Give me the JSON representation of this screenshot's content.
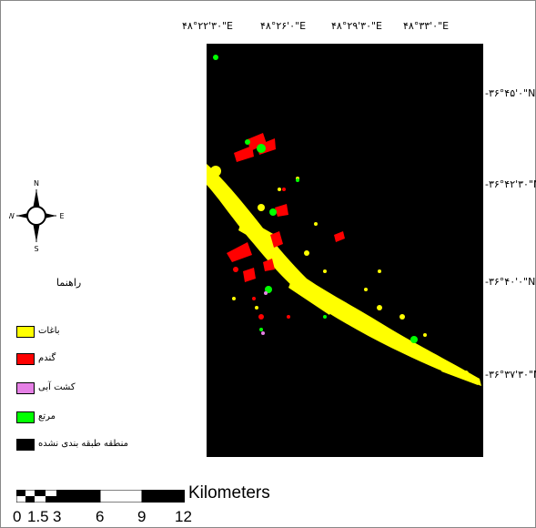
{
  "longitude_labels": [
    "۴۸°۲۲'۳۰\"E",
    "۴۸°۲۶'۰\"E",
    "۴۸°۲۹'۳۰\"E",
    "۴۸°۳۳'۰\"E"
  ],
  "latitude_labels": [
    "-۳۶°۴۵'۰\"N",
    "-۳۶°۴۲'۳۰\"N",
    "-۳۶°۴۰'۰\"N",
    "-۳۶°۳۷'۳۰\"N"
  ],
  "compass": {
    "n": "N",
    "s": "S",
    "e": "E",
    "w": "W"
  },
  "legend": {
    "title": "راهنما",
    "items": [
      {
        "label": "باغات",
        "color": "#ffff00"
      },
      {
        "label": "گندم",
        "color": "#ff0000"
      },
      {
        "label": "کشت آبی",
        "color": "#e580e5"
      },
      {
        "label": "مرتع",
        "color": "#00ff00"
      },
      {
        "label": "منطقه طبقه بندی نشده",
        "color": "#000000"
      }
    ]
  },
  "scale": {
    "unit": "Kilometers",
    "ticks": [
      "0",
      "1.5",
      "3",
      "6",
      "9",
      "12"
    ]
  }
}
